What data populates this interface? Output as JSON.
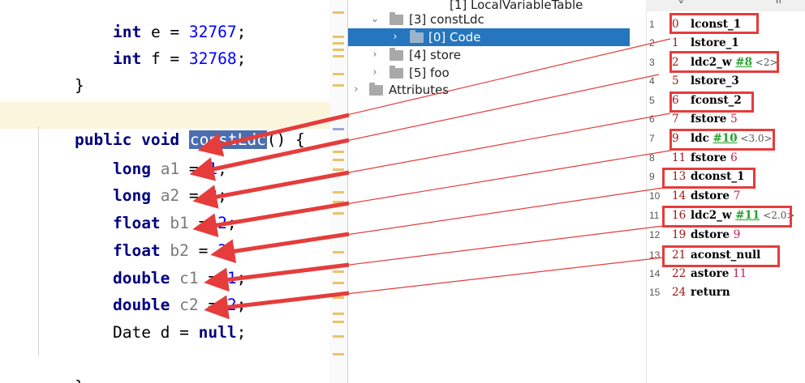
{
  "editor": {
    "lines": {
      "e_type": "int",
      "e_rest": " e = ",
      "e_val": "32767",
      "e_end": ";",
      "f_type": "int",
      "f_rest": " f = ",
      "f_val": "32768",
      "f_end": ";",
      "close1": "}",
      "sig_kw1": "public",
      "sig_kw2": "void",
      "sig_name": "constLdc",
      "sig_rest": "() {",
      "a1_type": "long",
      "a1_var": "a1",
      "a1_eq": " = ",
      "a1_val": "1",
      "a1_end": ";",
      "a2_type": "long",
      "a2_var": "a2",
      "a2_eq": " = ",
      "a2_val": "2",
      "a2_end": ";",
      "b1_type": "float",
      "b1_var": "b1",
      "b1_eq": " = ",
      "b1_val": "2",
      "b1_end": ";",
      "b2_type": "float",
      "b2_var": "b2",
      "b2_eq": " = ",
      "b2_val": "3",
      "b2_end": ";",
      "c1_type": "double",
      "c1_var": "c1",
      "c1_eq": " = ",
      "c1_val": "1",
      "c1_end": ";",
      "c2_type": "double",
      "c2_var": "c2",
      "c2_eq": " = ",
      "c2_val": "2",
      "c2_end": ";",
      "d_type": "Date",
      "d_var": " d = ",
      "d_val": "null",
      "d_end": ";",
      "close2": "}"
    }
  },
  "tree": {
    "nodes": [
      {
        "label": "[1] LocalVariableTable"
      },
      {
        "label": "[3] constLdc"
      },
      {
        "label": "[0] Code"
      },
      {
        "label": "[4] store"
      },
      {
        "label": "[5] foo"
      },
      {
        "label": "Attributes"
      }
    ]
  },
  "bytecode": {
    "header_tabs": [
      "y",
      "p"
    ],
    "lines": [
      {
        "ln": "1",
        "off": "0",
        "op": "lconst_1",
        "arg": "",
        "ref": "",
        "cmt": ""
      },
      {
        "ln": "2",
        "off": "1",
        "op": "lstore_1",
        "arg": "",
        "ref": "",
        "cmt": ""
      },
      {
        "ln": "3",
        "off": "2",
        "op": "ldc2_w ",
        "arg": "",
        "ref": "#8",
        "cmt": " <2>"
      },
      {
        "ln": "4",
        "off": "5",
        "op": "lstore_3",
        "arg": "",
        "ref": "",
        "cmt": ""
      },
      {
        "ln": "5",
        "off": "6",
        "op": "fconst_2",
        "arg": "",
        "ref": "",
        "cmt": ""
      },
      {
        "ln": "6",
        "off": "7",
        "op": "fstore ",
        "arg": "5",
        "ref": "",
        "cmt": ""
      },
      {
        "ln": "7",
        "off": "9",
        "op": "ldc ",
        "arg": "",
        "ref": "#10",
        "cmt": " <3.0>"
      },
      {
        "ln": "8",
        "off": "11",
        "op": "fstore ",
        "arg": "6",
        "ref": "",
        "cmt": ""
      },
      {
        "ln": "9",
        "off": "13",
        "op": "dconst_1",
        "arg": "",
        "ref": "",
        "cmt": ""
      },
      {
        "ln": "10",
        "off": "14",
        "op": "dstore ",
        "arg": "7",
        "ref": "",
        "cmt": ""
      },
      {
        "ln": "11",
        "off": "16",
        "op": "ldc2_w ",
        "arg": "",
        "ref": "#11",
        "cmt": " <2.0>"
      },
      {
        "ln": "12",
        "off": "19",
        "op": "dstore ",
        "arg": "9",
        "ref": "",
        "cmt": ""
      },
      {
        "ln": "13",
        "off": "21",
        "op": "aconst_null",
        "arg": "",
        "ref": "",
        "cmt": ""
      },
      {
        "ln": "14",
        "off": "22",
        "op": "astore ",
        "arg": "11",
        "ref": "",
        "cmt": ""
      },
      {
        "ln": "15",
        "off": "24",
        "op": "return",
        "arg": "",
        "ref": "",
        "cmt": ""
      }
    ]
  },
  "colors": {
    "keyword": "#000080",
    "selection": "#4b6eaf",
    "tree_selected": "#2675bf",
    "annotation_red": "#e63c3c",
    "ref_green": "#23a32c",
    "offset_red": "#a31515"
  }
}
